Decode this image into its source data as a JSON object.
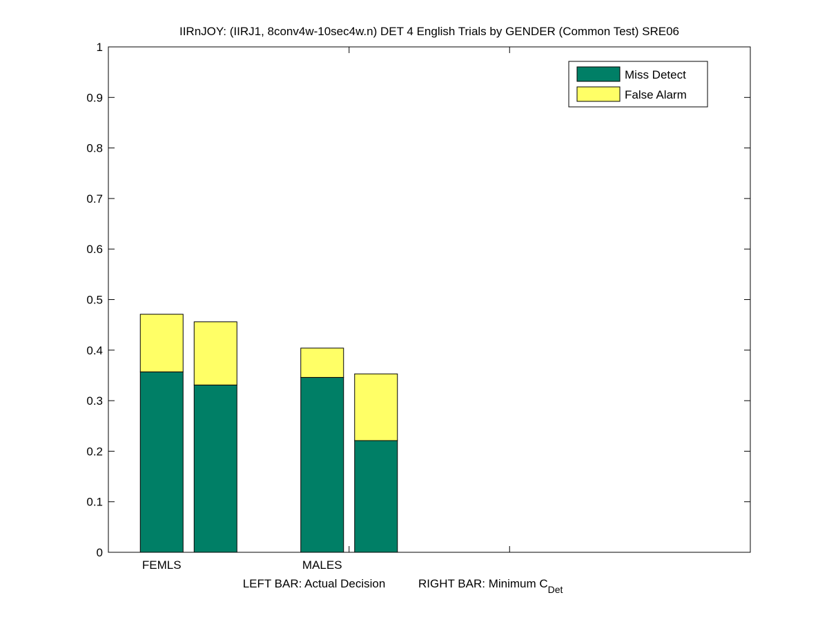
{
  "chart_data": {
    "type": "bar",
    "stacked": true,
    "title": "IIRnJOY: (IIRJ1, 8conv4w-10sec4w.n) DET 4 English Trials by GENDER (Common Test) SRE06",
    "xlabel_left": "LEFT BAR: Actual Decision",
    "xlabel_right": "RIGHT BAR: Minimum C",
    "xlabel_right_subscript": "Det",
    "ylabel": "",
    "ylim": [
      0,
      1
    ],
    "yticks": [
      "0",
      "0.1",
      "0.2",
      "0.3",
      "0.4",
      "0.5",
      "0.6",
      "0.7",
      "0.8",
      "0.9",
      "1"
    ],
    "categories": [
      "FEMLS",
      "MALES"
    ],
    "bars": [
      {
        "category": "FEMLS",
        "position": "left",
        "miss_detect": 0.357,
        "false_alarm": 0.114
      },
      {
        "category": "FEMLS",
        "position": "right",
        "miss_detect": 0.331,
        "false_alarm": 0.125
      },
      {
        "category": "MALES",
        "position": "left",
        "miss_detect": 0.346,
        "false_alarm": 0.058
      },
      {
        "category": "MALES",
        "position": "right",
        "miss_detect": 0.221,
        "false_alarm": 0.132
      }
    ],
    "series": [
      {
        "name": "Miss Detect",
        "color": "#007f66"
      },
      {
        "name": "False Alarm",
        "color": "#ffff66"
      }
    ],
    "legend_position": "top-right",
    "grid": false
  }
}
